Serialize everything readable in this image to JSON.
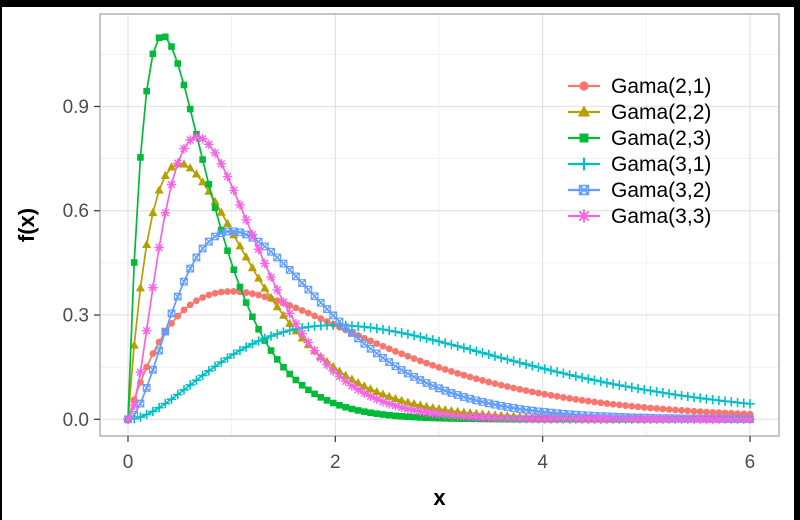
{
  "window": {
    "background": "#ffffff",
    "frame_color": "#000000"
  },
  "chart_data": {
    "type": "line",
    "title": "",
    "xlabel": "x",
    "ylabel": "f(x)",
    "grid": true,
    "legend_position": "inside-top-right",
    "xlim": [
      -0.27,
      6.28
    ],
    "ylim": [
      -0.048,
      1.166
    ],
    "x_ticks": {
      "values": [
        0,
        2,
        4,
        6
      ],
      "labels": [
        "0",
        "2",
        "4",
        "6"
      ]
    },
    "y_ticks": {
      "values": [
        0.0,
        0.3,
        0.6,
        0.9
      ],
      "labels": [
        "0.0",
        "0.3",
        "0.6",
        "0.9"
      ]
    },
    "x_minor": [
      1,
      3,
      5
    ],
    "y_minor": [
      0.15,
      0.45,
      0.75,
      1.05
    ],
    "sampling": {
      "x_min": 0,
      "x_max": 6,
      "step": 0.06
    },
    "series": [
      {
        "label": "Gama(2,1)",
        "distribution": "gamma",
        "shape": 2,
        "rate": 1,
        "color": "#F8766D",
        "marker": "circle-filled",
        "peak": {
          "x": 1.0,
          "f": 0.368
        }
      },
      {
        "label": "Gama(2,2)",
        "distribution": "gamma",
        "shape": 2,
        "rate": 2,
        "color": "#B79F00",
        "marker": "triangle-filled",
        "peak": {
          "x": 0.5,
          "f": 0.736
        }
      },
      {
        "label": "Gama(2,3)",
        "distribution": "gamma",
        "shape": 2,
        "rate": 3,
        "color": "#00BA38",
        "marker": "square-filled",
        "peak": {
          "x": 0.333,
          "f": 1.104
        }
      },
      {
        "label": "Gama(3,1)",
        "distribution": "gamma",
        "shape": 3,
        "rate": 1,
        "color": "#00BFC4",
        "marker": "plus",
        "peak": {
          "x": 2.0,
          "f": 0.271
        }
      },
      {
        "label": "Gama(3,2)",
        "distribution": "gamma",
        "shape": 3,
        "rate": 2,
        "color": "#619CFF",
        "marker": "square-x",
        "peak": {
          "x": 1.0,
          "f": 0.541
        }
      },
      {
        "label": "Gama(3,3)",
        "distribution": "gamma",
        "shape": 3,
        "rate": 3,
        "color": "#F564E3",
        "marker": "asterisk",
        "peak": {
          "x": 0.667,
          "f": 0.812
        }
      }
    ],
    "styles": {
      "panel_background": "#ffffff",
      "grid_major": "#e3e3e3",
      "grid_minor": "#efefef",
      "panel_border": "#a6a6a6",
      "tick_color": "#333333",
      "tick_label_color": "#4d4d4d",
      "axis_title_color": "#000000",
      "legend_text_color": "#000000"
    }
  }
}
